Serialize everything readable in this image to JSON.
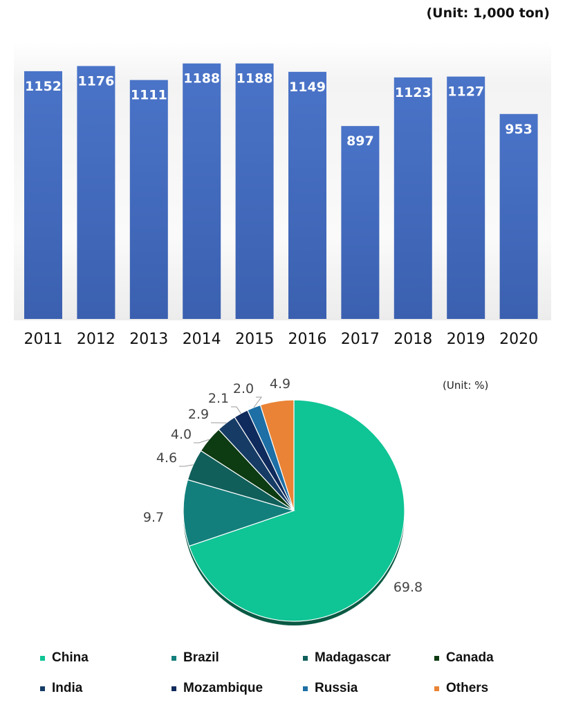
{
  "chart_data": [
    {
      "type": "bar",
      "unit_label": "(Unit: 1,000 ton)",
      "categories": [
        "2011",
        "2012",
        "2013",
        "2014",
        "2015",
        "2016",
        "2017",
        "2018",
        "2019",
        "2020"
      ],
      "values": [
        1152,
        1176,
        1111,
        1188,
        1188,
        1149,
        897,
        1123,
        1127,
        953
      ],
      "title": "",
      "xlabel": "",
      "ylabel": "",
      "ylim": [
        0,
        1290
      ],
      "grid": false,
      "bar_color": "#4169be"
    },
    {
      "type": "pie",
      "unit_label": "(Unit: %)",
      "labels": [
        "China",
        "Brazil",
        "Madagascar",
        "Canada",
        "India",
        "Mozambique",
        "Russia",
        "Others"
      ],
      "values": [
        69.8,
        9.7,
        4.6,
        4.0,
        2.9,
        2.1,
        2.0,
        4.9
      ],
      "colors": [
        "#0fc495",
        "#137f7c",
        "#105f5b",
        "#0d3b12",
        "#163c66",
        "#0f2a5c",
        "#1d6fa5",
        "#ea8335"
      ],
      "legend_position": "bottom"
    }
  ]
}
